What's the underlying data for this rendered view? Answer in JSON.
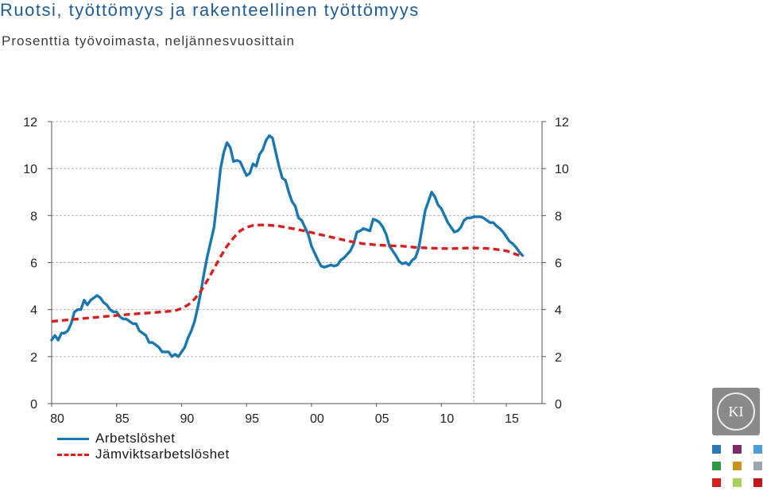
{
  "header": {
    "title": "Ruotsi, työttömyys  ja rakenteellinen työttömyys",
    "subtitle": "Prosenttia työvoimasta, neljännesvuosittain"
  },
  "logo": {
    "text": "KI",
    "colors": [
      "#2a77b5",
      "#7b2a6e",
      "#4aa0d6",
      "#2f9a45",
      "#c9931b",
      "#9aa5ad",
      "#d42020",
      "#a8d05a",
      "#c01818"
    ]
  },
  "chart_data": {
    "type": "line",
    "title": "Ruotsi, työttömyys  ja rakenteellinen työttömyys",
    "subtitle": "Prosenttia työvoimasta, neljännesvuosittain",
    "xlabel": "",
    "ylabel": "",
    "x_range": [
      1980,
      2017.75
    ],
    "ylim": [
      0,
      12
    ],
    "y_ticks": [
      0,
      2,
      4,
      6,
      8,
      10,
      12
    ],
    "y_tick_labels": [
      "0",
      "2",
      "4",
      "6",
      "8",
      "10",
      "12"
    ],
    "x_ticks": [
      1980,
      1985,
      1990,
      1995,
      2000,
      2005,
      2010,
      2015
    ],
    "x_tick_labels": [
      "80",
      "85",
      "90",
      "95",
      "00",
      "05",
      "10",
      "15"
    ],
    "forecast_divider_x": 2012.5,
    "grid": "horizontal dashed",
    "axes": "left and right",
    "legend_position": "bottom-left",
    "series": [
      {
        "name": "Arbetslöshet",
        "color": "#1a77b0",
        "style": "solid",
        "points": [
          [
            1980.0,
            2.7
          ],
          [
            1980.25,
            2.9
          ],
          [
            1980.5,
            2.7
          ],
          [
            1980.75,
            3.0
          ],
          [
            1981.0,
            3.0
          ],
          [
            1981.25,
            3.1
          ],
          [
            1981.5,
            3.4
          ],
          [
            1981.75,
            3.9
          ],
          [
            1982.0,
            4.0
          ],
          [
            1982.25,
            4.0
          ],
          [
            1982.5,
            4.4
          ],
          [
            1982.75,
            4.2
          ],
          [
            1983.0,
            4.4
          ],
          [
            1983.25,
            4.5
          ],
          [
            1983.5,
            4.6
          ],
          [
            1983.75,
            4.5
          ],
          [
            1984.0,
            4.3
          ],
          [
            1984.25,
            4.2
          ],
          [
            1984.5,
            4.0
          ],
          [
            1984.75,
            3.9
          ],
          [
            1985.0,
            3.9
          ],
          [
            1985.25,
            3.7
          ],
          [
            1985.5,
            3.6
          ],
          [
            1985.75,
            3.6
          ],
          [
            1986.0,
            3.5
          ],
          [
            1986.25,
            3.4
          ],
          [
            1986.5,
            3.4
          ],
          [
            1986.75,
            3.1
          ],
          [
            1987.0,
            3.0
          ],
          [
            1987.25,
            2.9
          ],
          [
            1987.5,
            2.6
          ],
          [
            1987.75,
            2.6
          ],
          [
            1988.0,
            2.5
          ],
          [
            1988.25,
            2.4
          ],
          [
            1988.5,
            2.2
          ],
          [
            1988.75,
            2.2
          ],
          [
            1989.0,
            2.2
          ],
          [
            1989.25,
            2.0
          ],
          [
            1989.5,
            2.1
          ],
          [
            1989.75,
            2.0
          ],
          [
            1990.0,
            2.2
          ],
          [
            1990.25,
            2.4
          ],
          [
            1990.5,
            2.8
          ],
          [
            1990.75,
            3.1
          ],
          [
            1991.0,
            3.5
          ],
          [
            1991.25,
            4.1
          ],
          [
            1991.5,
            4.8
          ],
          [
            1991.75,
            5.6
          ],
          [
            1992.0,
            6.3
          ],
          [
            1992.25,
            6.9
          ],
          [
            1992.5,
            7.5
          ],
          [
            1992.75,
            8.7
          ],
          [
            1993.0,
            10.0
          ],
          [
            1993.25,
            10.7
          ],
          [
            1993.5,
            11.1
          ],
          [
            1993.75,
            10.9
          ],
          [
            1994.0,
            10.3
          ],
          [
            1994.25,
            10.35
          ],
          [
            1994.5,
            10.3
          ],
          [
            1994.75,
            10.0
          ],
          [
            1995.0,
            9.7
          ],
          [
            1995.25,
            9.8
          ],
          [
            1995.5,
            10.2
          ],
          [
            1995.75,
            10.1
          ],
          [
            1996.0,
            10.6
          ],
          [
            1996.25,
            10.8
          ],
          [
            1996.5,
            11.2
          ],
          [
            1996.75,
            11.4
          ],
          [
            1997.0,
            11.3
          ],
          [
            1997.25,
            10.7
          ],
          [
            1997.5,
            10.1
          ],
          [
            1997.75,
            9.6
          ],
          [
            1998.0,
            9.5
          ],
          [
            1998.25,
            9.0
          ],
          [
            1998.5,
            8.6
          ],
          [
            1998.75,
            8.4
          ],
          [
            1999.0,
            7.9
          ],
          [
            1999.25,
            7.8
          ],
          [
            1999.5,
            7.5
          ],
          [
            1999.75,
            7.2
          ],
          [
            2000.0,
            6.7
          ],
          [
            2000.25,
            6.4
          ],
          [
            2000.5,
            6.1
          ],
          [
            2000.75,
            5.85
          ],
          [
            2001.0,
            5.8
          ],
          [
            2001.25,
            5.85
          ],
          [
            2001.5,
            5.9
          ],
          [
            2001.75,
            5.85
          ],
          [
            2002.0,
            5.9
          ],
          [
            2002.25,
            6.1
          ],
          [
            2002.5,
            6.2
          ],
          [
            2002.75,
            6.35
          ],
          [
            2003.0,
            6.5
          ],
          [
            2003.25,
            6.8
          ],
          [
            2003.5,
            7.3
          ],
          [
            2003.75,
            7.35
          ],
          [
            2004.0,
            7.45
          ],
          [
            2004.25,
            7.4
          ],
          [
            2004.5,
            7.35
          ],
          [
            2004.75,
            7.85
          ],
          [
            2005.0,
            7.8
          ],
          [
            2005.25,
            7.7
          ],
          [
            2005.5,
            7.5
          ],
          [
            2005.75,
            7.2
          ],
          [
            2006.0,
            6.7
          ],
          [
            2006.25,
            6.5
          ],
          [
            2006.5,
            6.3
          ],
          [
            2006.75,
            6.05
          ],
          [
            2007.0,
            5.95
          ],
          [
            2007.25,
            6.0
          ],
          [
            2007.5,
            5.9
          ],
          [
            2007.75,
            6.1
          ],
          [
            2008.0,
            6.2
          ],
          [
            2008.25,
            6.6
          ],
          [
            2008.5,
            7.4
          ],
          [
            2008.75,
            8.2
          ],
          [
            2009.0,
            8.6
          ],
          [
            2009.25,
            9.0
          ],
          [
            2009.5,
            8.8
          ],
          [
            2009.75,
            8.45
          ],
          [
            2010.0,
            8.3
          ],
          [
            2010.25,
            8.0
          ],
          [
            2010.5,
            7.7
          ],
          [
            2010.75,
            7.5
          ],
          [
            2011.0,
            7.3
          ],
          [
            2011.25,
            7.35
          ],
          [
            2011.5,
            7.5
          ],
          [
            2011.75,
            7.8
          ],
          [
            2012.0,
            7.9
          ],
          [
            2012.25,
            7.9
          ],
          [
            2012.5,
            7.95
          ],
          [
            2012.75,
            7.95
          ],
          [
            2013.0,
            7.95
          ],
          [
            2013.25,
            7.9
          ],
          [
            2013.5,
            7.8
          ],
          [
            2013.75,
            7.7
          ],
          [
            2014.0,
            7.7
          ],
          [
            2014.25,
            7.55
          ],
          [
            2014.5,
            7.45
          ],
          [
            2014.75,
            7.3
          ],
          [
            2015.0,
            7.1
          ],
          [
            2015.25,
            6.9
          ],
          [
            2015.5,
            6.8
          ],
          [
            2015.75,
            6.65
          ],
          [
            2016.0,
            6.45
          ],
          [
            2016.25,
            6.3
          ]
        ]
      },
      {
        "name": "Jämviktsarbetslöshet",
        "color": "#d42020",
        "style": "dashed",
        "points": [
          [
            1980.0,
            3.5
          ],
          [
            1982.0,
            3.6
          ],
          [
            1984.0,
            3.7
          ],
          [
            1986.0,
            3.8
          ],
          [
            1988.0,
            3.88
          ],
          [
            1989.5,
            3.95
          ],
          [
            1990.0,
            4.05
          ],
          [
            1990.5,
            4.2
          ],
          [
            1991.0,
            4.45
          ],
          [
            1991.5,
            4.8
          ],
          [
            1992.0,
            5.25
          ],
          [
            1992.5,
            5.75
          ],
          [
            1993.0,
            6.25
          ],
          [
            1993.5,
            6.7
          ],
          [
            1994.0,
            7.05
          ],
          [
            1994.5,
            7.35
          ],
          [
            1995.0,
            7.5
          ],
          [
            1995.5,
            7.58
          ],
          [
            1996.0,
            7.6
          ],
          [
            1996.5,
            7.6
          ],
          [
            1997.0,
            7.58
          ],
          [
            1997.5,
            7.55
          ],
          [
            1998.0,
            7.5
          ],
          [
            1999.0,
            7.4
          ],
          [
            2000.0,
            7.28
          ],
          [
            2001.0,
            7.15
          ],
          [
            2002.0,
            7.02
          ],
          [
            2003.0,
            6.9
          ],
          [
            2004.0,
            6.8
          ],
          [
            2005.0,
            6.75
          ],
          [
            2006.0,
            6.72
          ],
          [
            2007.0,
            6.7
          ],
          [
            2008.0,
            6.65
          ],
          [
            2009.0,
            6.62
          ],
          [
            2010.0,
            6.6
          ],
          [
            2011.0,
            6.6
          ],
          [
            2012.0,
            6.62
          ],
          [
            2013.0,
            6.62
          ],
          [
            2014.0,
            6.58
          ],
          [
            2015.0,
            6.5
          ],
          [
            2016.0,
            6.3
          ]
        ]
      }
    ]
  }
}
